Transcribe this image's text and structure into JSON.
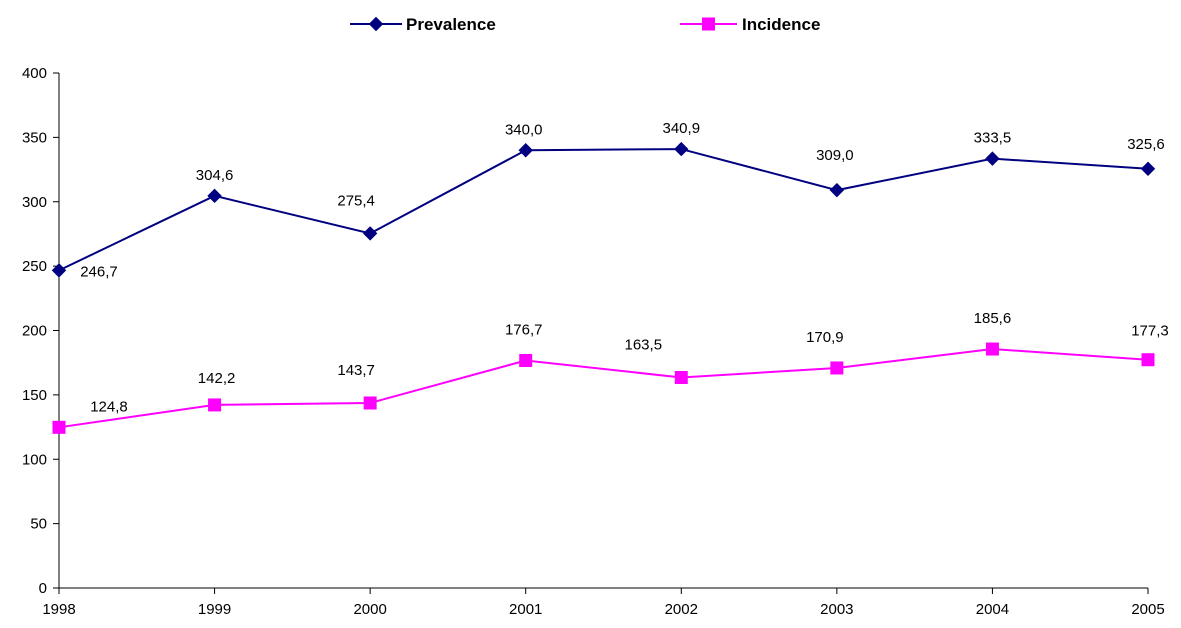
{
  "chart_data": {
    "type": "line",
    "x": [
      "1998",
      "1999",
      "2000",
      "2001",
      "2002",
      "2003",
      "2004",
      "2005"
    ],
    "ylim": [
      0,
      400
    ],
    "yticks": [
      0,
      50,
      100,
      150,
      200,
      250,
      300,
      350,
      400
    ],
    "grid": false,
    "legend_position": "top-center",
    "series": [
      {
        "name": "Prevalence",
        "values": [
          246.7,
          304.6,
          275.4,
          340.0,
          340.9,
          309.0,
          333.5,
          325.6
        ],
        "labels": [
          "246,7",
          "304,6",
          "275,4",
          "340,0",
          "340,9",
          "309,0",
          "333,5",
          "325,6"
        ],
        "color": "#000080",
        "marker": "diamond"
      },
      {
        "name": "Incidence",
        "values": [
          124.8,
          142.2,
          143.7,
          176.7,
          163.5,
          170.9,
          185.6,
          177.3
        ],
        "labels": [
          "124,8",
          "142,2",
          "143,7",
          "176,7",
          "163,5",
          "170,9",
          "185,6",
          "177,3"
        ],
        "color": "#FF00FF",
        "marker": "square"
      }
    ]
  }
}
